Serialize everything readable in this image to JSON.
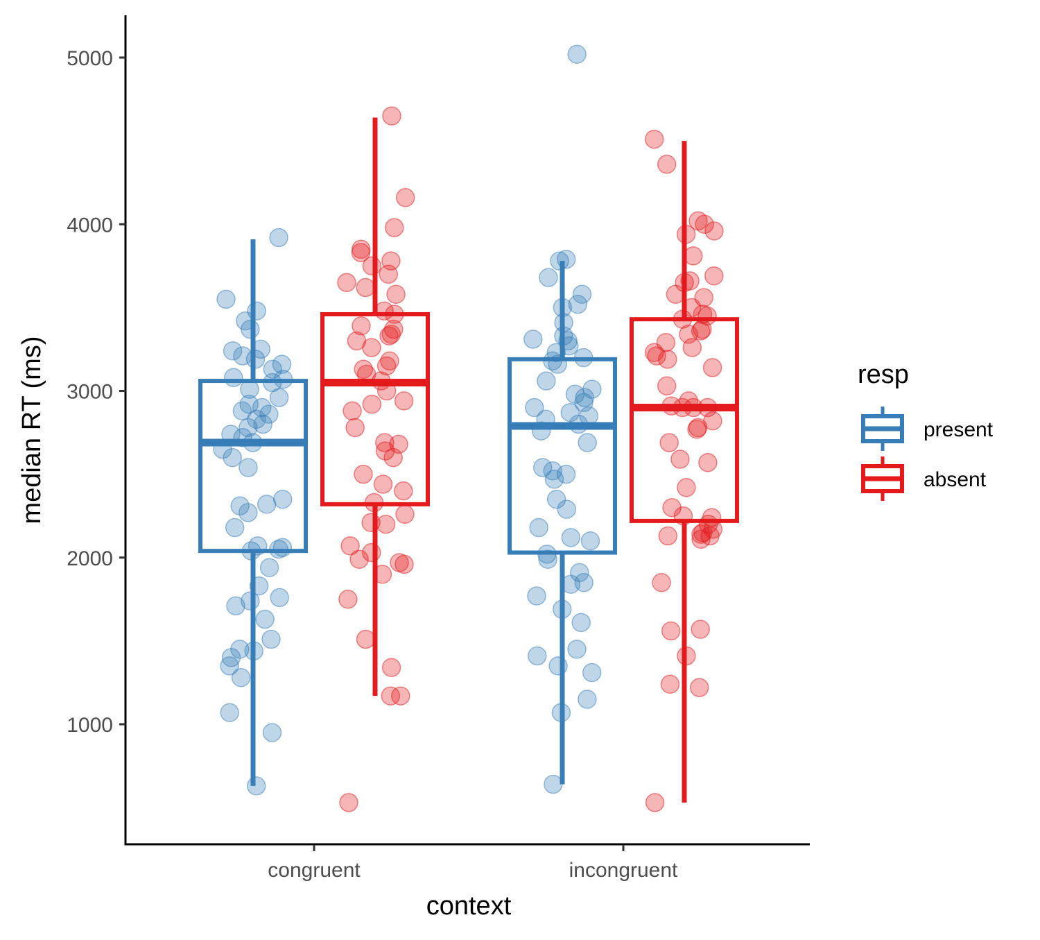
{
  "chart_data": {
    "type": "boxplot",
    "xlabel": "context",
    "ylabel": "median RT (ms)",
    "categories": [
      "congruent",
      "incongruent"
    ],
    "yticks": [
      1000,
      2000,
      3000,
      4000,
      5000
    ],
    "ylim": [
      300,
      5250
    ],
    "grid": false,
    "legend": {
      "title": "resp",
      "position": "right",
      "items": [
        {
          "label": "present",
          "color": "#377eb8"
        },
        {
          "label": "absent",
          "color": "#e41a1c"
        }
      ]
    },
    "series": [
      {
        "name": "present",
        "color": "#377eb8",
        "boxes": [
          {
            "category": "congruent",
            "whisker_low": 630,
            "q1": 2040,
            "median": 2690,
            "q3": 3060,
            "whisker_high": 3910
          },
          {
            "category": "incongruent",
            "whisker_low": 640,
            "q1": 2030,
            "median": 2790,
            "q3": 3190,
            "whisker_high": 3780
          }
        ],
        "points": [
          {
            "category": "congruent",
            "y": [
              3920,
              3550,
              3480,
              3420,
              3370,
              3250,
              3240,
              3210,
              3190,
              3160,
              3130,
              3080,
              3070,
              3050,
              3010,
              2960,
              2920,
              2900,
              2880,
              2860,
              2830,
              2800,
              2780,
              2740,
              2720,
              2690,
              2650,
              2600,
              2540,
              2350,
              2320,
              2310,
              2270,
              2180,
              2070,
              2060,
              2050,
              2040,
              1940,
              1830,
              1760,
              1740,
              1710,
              1630,
              1510,
              1450,
              1440,
              1400,
              1350,
              1280,
              1070,
              950,
              630
            ]
          },
          {
            "category": "incongruent",
            "y": [
              5020,
              3790,
              3780,
              3680,
              3580,
              3520,
              3500,
              3410,
              3330,
              3310,
              3300,
              3270,
              3230,
              3200,
              3180,
              3160,
              3060,
              3010,
              2980,
              2960,
              2930,
              2900,
              2870,
              2850,
              2830,
              2800,
              2760,
              2690,
              2540,
              2520,
              2500,
              2470,
              2350,
              2290,
              2180,
              2120,
              2100,
              2020,
              1990,
              1910,
              1850,
              1840,
              1770,
              1690,
              1610,
              1450,
              1410,
              1350,
              1310,
              1150,
              1070,
              640
            ]
          }
        ]
      },
      {
        "name": "absent",
        "color": "#e41a1c",
        "boxes": [
          {
            "category": "congruent",
            "whisker_low": 1170,
            "q1": 2320,
            "median": 3050,
            "q3": 3460,
            "whisker_high": 4640
          },
          {
            "category": "incongruent",
            "whisker_low": 530,
            "q1": 2220,
            "median": 2900,
            "q3": 3430,
            "whisker_high": 4500
          }
        ],
        "points": [
          {
            "category": "congruent",
            "y": [
              4650,
              4160,
              3980,
              3850,
              3830,
              3780,
              3750,
              3700,
              3650,
              3620,
              3580,
              3480,
              3460,
              3390,
              3370,
              3340,
              3330,
              3300,
              3260,
              3180,
              3150,
              3130,
              3100,
              3060,
              3000,
              2940,
              2920,
              2880,
              2780,
              2690,
              2680,
              2640,
              2600,
              2500,
              2440,
              2400,
              2330,
              2260,
              2210,
              2200,
              2070,
              2030,
              1990,
              1970,
              1960,
              1900,
              1750,
              1510,
              1340,
              1170,
              1170,
              530
            ]
          },
          {
            "category": "incongruent",
            "y": [
              4510,
              4360,
              4020,
              4000,
              3960,
              3940,
              3810,
              3690,
              3660,
              3650,
              3580,
              3560,
              3500,
              3460,
              3450,
              3430,
              3370,
              3360,
              3340,
              3290,
              3260,
              3230,
              3210,
              3190,
              3140,
              3030,
              2940,
              2910,
              2900,
              2900,
              2900,
              2820,
              2780,
              2770,
              2690,
              2590,
              2570,
              2420,
              2300,
              2250,
              2240,
              2200,
              2170,
              2150,
              2140,
              2130,
              2130,
              2110,
              1850,
              1570,
              1560,
              1410,
              1240,
              1220,
              530
            ]
          }
        ]
      }
    ]
  }
}
